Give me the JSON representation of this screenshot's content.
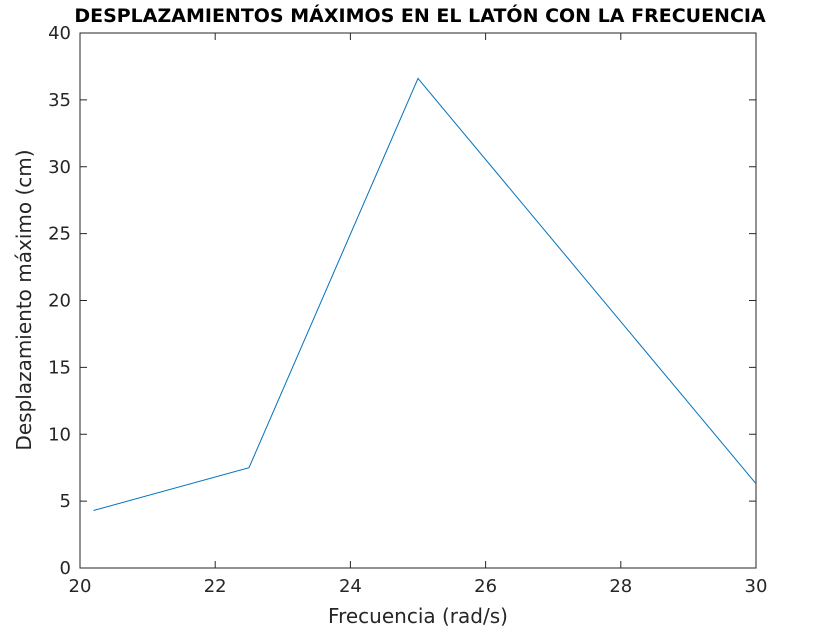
{
  "chart_data": {
    "type": "line",
    "title": "DESPLAZAMIENTOS MÁXIMOS EN EL LATÓN CON LA FRECUENCIA",
    "xlabel": "Frecuencia (rad/s)",
    "ylabel": "Desplazamiento máximo (cm)",
    "xlim": [
      20,
      30
    ],
    "ylim": [
      0,
      40
    ],
    "xticks": [
      20,
      22,
      24,
      26,
      28,
      30
    ],
    "yticks": [
      0,
      5,
      10,
      15,
      20,
      25,
      30,
      35,
      40
    ],
    "grid": false,
    "legend": "none",
    "series": [
      {
        "color": "#0072BD",
        "x": [
          20.2,
          22.5,
          25.0,
          30.0
        ],
        "y": [
          4.3,
          7.5,
          36.6,
          6.3
        ]
      }
    ]
  }
}
